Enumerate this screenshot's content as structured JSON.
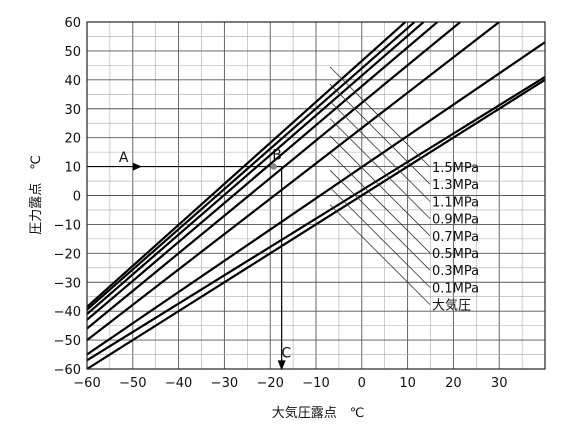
{
  "chart_data": {
    "type": "line",
    "title": "",
    "xlabel": "大気圧露点　℃",
    "ylabel": "圧力露点　℃",
    "xlim": [
      -60,
      40
    ],
    "ylim": [
      -60,
      60
    ],
    "x_ticks": [
      "−60",
      "−50",
      "−40",
      "−30",
      "−20",
      "−10",
      "0",
      "10",
      "20",
      "30"
    ],
    "y_ticks": [
      "60",
      "50",
      "40",
      "30",
      "20",
      "10",
      "0",
      "−10",
      "−20",
      "−30",
      "−40",
      "−50",
      "−60"
    ],
    "grid": true,
    "legend_position": "right",
    "series": [
      {
        "name": "1.5MPa",
        "x": [
          -60,
          9.5
        ],
        "y": [
          -38.5,
          60
        ]
      },
      {
        "name": "1.3MPa",
        "x": [
          -60,
          11.5
        ],
        "y": [
          -39.5,
          60
        ]
      },
      {
        "name": "1.1MPa",
        "x": [
          -60,
          13.5
        ],
        "y": [
          -41,
          60
        ]
      },
      {
        "name": "0.9MPa",
        "x": [
          -60,
          16.5
        ],
        "y": [
          -43,
          60
        ]
      },
      {
        "name": "0.7MPa",
        "x": [
          -60,
          21.5
        ],
        "y": [
          -46,
          60
        ]
      },
      {
        "name": "0.5MPa",
        "x": [
          -60,
          30
        ],
        "y": [
          -50,
          60
        ]
      },
      {
        "name": "0.3MPa",
        "x": [
          -60,
          40
        ],
        "y": [
          -55,
          53
        ]
      },
      {
        "name": "0.1MPa",
        "x": [
          -60,
          40
        ],
        "y": [
          -57,
          41
        ]
      },
      {
        "name": "大気圧",
        "x": [
          -60,
          40
        ],
        "y": [
          -60,
          40
        ]
      }
    ],
    "annotations": [
      {
        "label": "A",
        "x": -52,
        "y": 11.5
      },
      {
        "label": "B",
        "x": -18.5,
        "y": 12.5
      },
      {
        "label": "C",
        "x": -16.5,
        "y": -56
      }
    ],
    "example_path": {
      "x_start": -60,
      "y_value": 10,
      "x_drop": -17.5
    }
  }
}
